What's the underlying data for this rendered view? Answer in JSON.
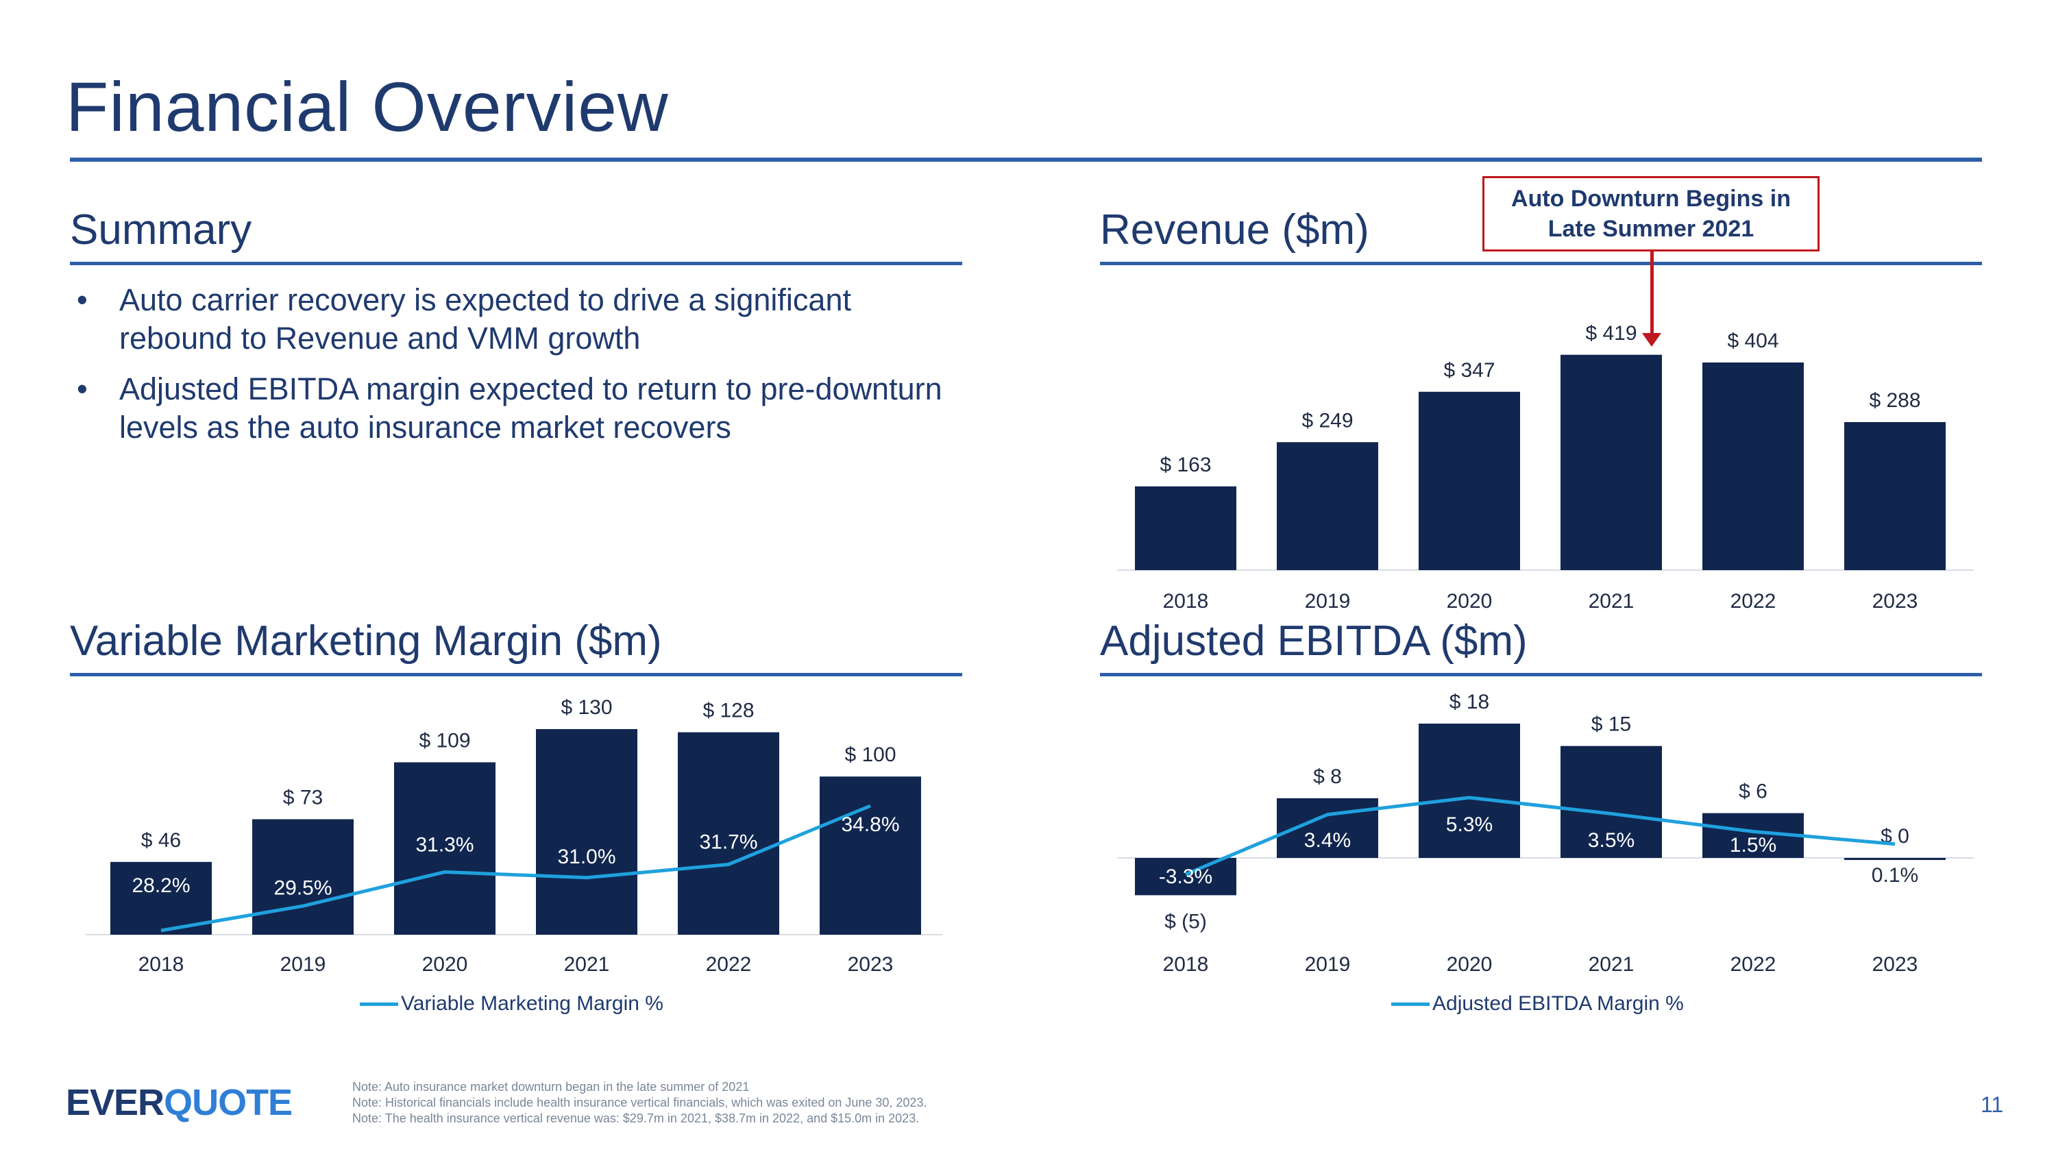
{
  "title": "Financial Overview",
  "summary": {
    "heading": "Summary",
    "bullets": [
      "Auto carrier recovery is expected to drive a significant rebound to Revenue and VMM growth",
      "Adjusted EBITDA margin expected to return to pre-downturn levels as the auto insurance market recovers"
    ]
  },
  "revenue": {
    "heading": "Revenue ($m)"
  },
  "vmm": {
    "heading": "Variable Marketing Margin ($m)"
  },
  "ebitda": {
    "heading": "Adjusted EBITDA ($m)"
  },
  "callout": {
    "text": "Auto Downturn Begins in Late Summer 2021"
  },
  "chart_data": [
    {
      "id": "revenue",
      "type": "bar",
      "title": "Revenue ($m)",
      "categories": [
        "2018",
        "2019",
        "2020",
        "2021",
        "2022",
        "2023"
      ],
      "values": [
        163,
        249,
        347,
        419,
        404,
        288
      ],
      "value_labels": [
        "$ 163",
        "$ 249",
        "$ 347",
        "$ 419",
        "$ 404",
        "$ 288"
      ],
      "ylim": [
        0,
        420
      ],
      "bar_color": "#10264f"
    },
    {
      "id": "vmm",
      "type": "bar",
      "title": "Variable Marketing Margin ($m)",
      "categories": [
        "2018",
        "2019",
        "2020",
        "2021",
        "2022",
        "2023"
      ],
      "values": [
        46,
        73,
        109,
        130,
        128,
        100
      ],
      "value_labels": [
        "$ 46",
        "$ 73",
        "$ 109",
        "$ 130",
        "$ 128",
        "$ 100"
      ],
      "ylim": [
        0,
        130
      ],
      "bar_color": "#10264f",
      "line_series": {
        "name": "Variable Marketing Margin %",
        "values": [
          28.2,
          29.5,
          31.3,
          31.0,
          31.7,
          34.8
        ],
        "labels": [
          "28.2%",
          "29.5%",
          "31.3%",
          "31.0%",
          "31.7%",
          "34.8%"
        ],
        "color": "#1fa1dd"
      }
    },
    {
      "id": "ebitda",
      "type": "bar",
      "title": "Adjusted EBITDA ($m)",
      "categories": [
        "2018",
        "2019",
        "2020",
        "2021",
        "2022",
        "2023"
      ],
      "values": [
        -5,
        8,
        18,
        15,
        6,
        0
      ],
      "value_labels": [
        "$ (5)",
        "$ 8",
        "$ 18",
        "$ 15",
        "$ 6",
        "$ 0"
      ],
      "ylim": [
        -5,
        18
      ],
      "bar_color": "#10264f",
      "line_series": {
        "name": "Adjusted EBITDA Margin %",
        "values": [
          -3.3,
          3.4,
          5.3,
          3.5,
          1.5,
          0.1
        ],
        "labels": [
          "-3.3%",
          "3.4%",
          "5.3%",
          "3.5%",
          "1.5%",
          "0.1%"
        ],
        "color": "#1fa1dd"
      }
    }
  ],
  "legend": {
    "vmm": "Variable Marketing Margin %",
    "ebitda": "Adjusted EBITDA Margin %"
  },
  "logo": {
    "part1": "EVER",
    "part2": "QUOTE"
  },
  "notes": [
    "Note: Auto insurance market downturn began in the late summer of 2021",
    "Note: Historical financials include health insurance vertical financials, which was exited on June 30, 2023.",
    "Note: The health insurance vertical revenue was: $29.7m in 2021, $38.7m in 2022, and $15.0m in 2023."
  ],
  "page_number": "11"
}
